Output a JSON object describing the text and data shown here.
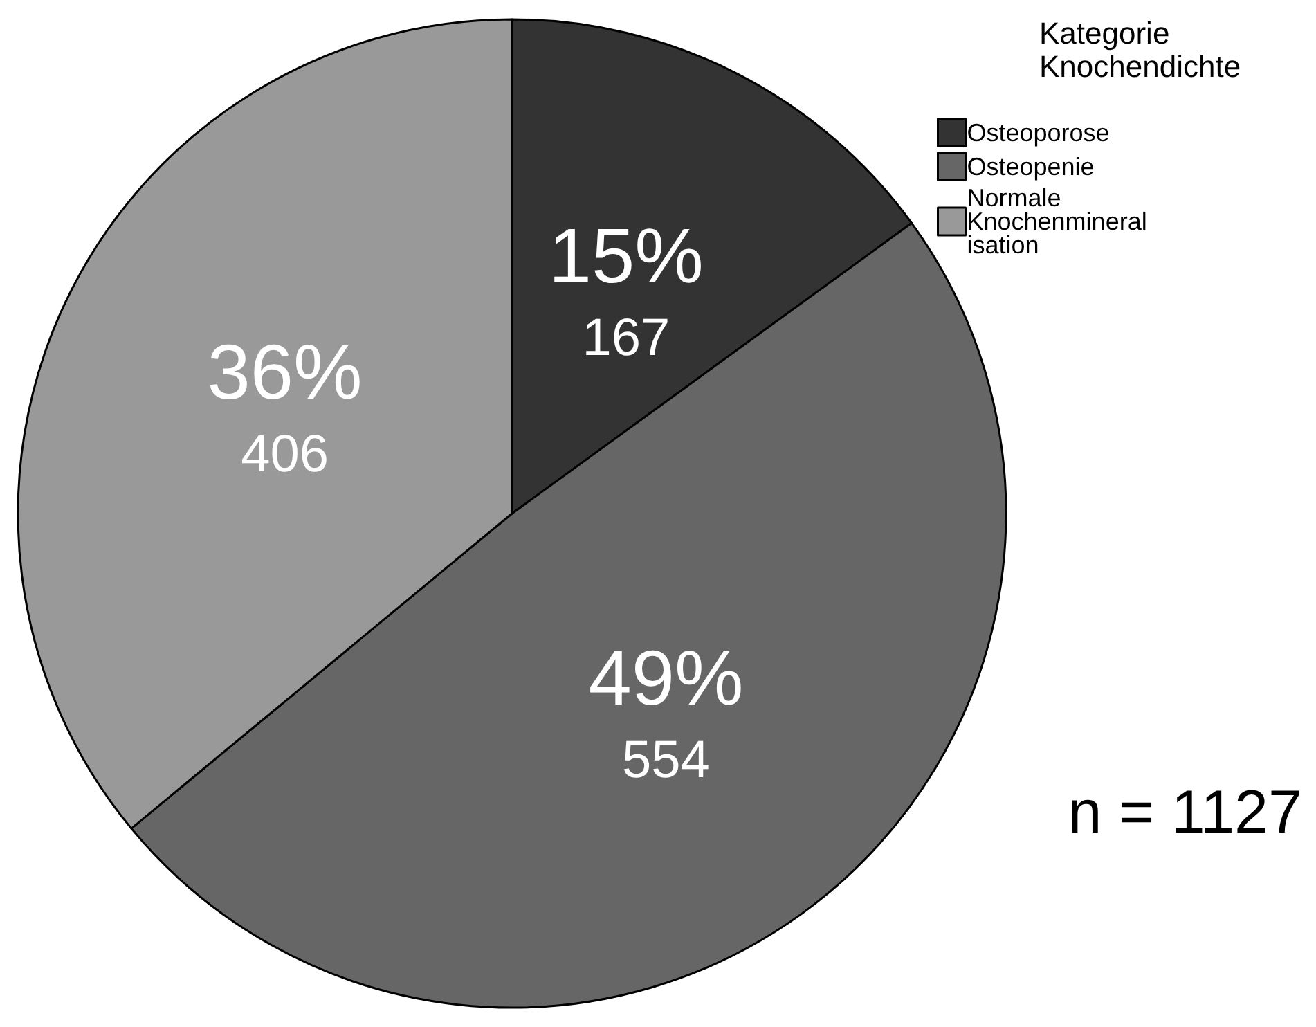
{
  "chart_data": {
    "type": "pie",
    "legend_title": "Kategorie Knochendichte",
    "categories": [
      "Osteoporose",
      "Osteopenie",
      "Normale Knochenmineralisation"
    ],
    "values": [
      15,
      49,
      36
    ],
    "value_labels": [
      "15%\n167",
      "49%\n554",
      "36%\n406"
    ],
    "colors": [
      "#333333",
      "#666666",
      "#999999"
    ],
    "legend": "top right",
    "annotations": [
      "n = 1127"
    ]
  }
}
